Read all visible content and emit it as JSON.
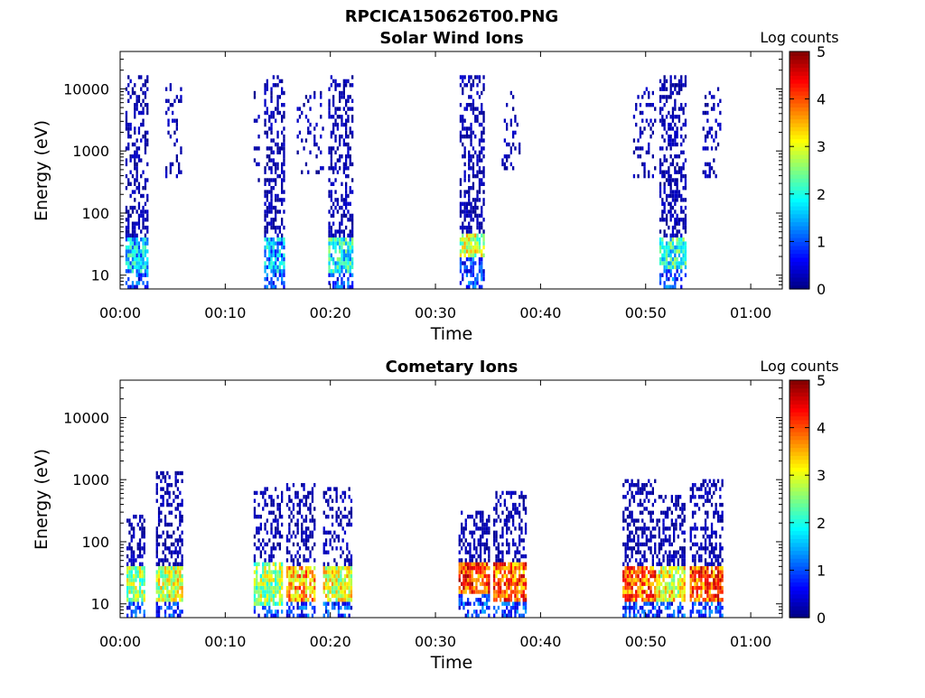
{
  "figure_title": "RPCICA150626T00.PNG",
  "chart_data": [
    {
      "type": "heatmap",
      "title": "Solar Wind Ions",
      "xlabel": "Time",
      "ylabel": "Energy (eV)",
      "x_tick_labels": [
        "00:00",
        "00:10",
        "00:20",
        "00:30",
        "00:40",
        "00:50",
        "01:00"
      ],
      "x_tick_minutes": [
        0,
        10,
        20,
        30,
        40,
        50,
        60
      ],
      "xlim_minutes": [
        0,
        63
      ],
      "y_tick_labels": [
        "10",
        "100",
        "1000",
        "10000"
      ],
      "y_tick_values": [
        10,
        100,
        1000,
        10000
      ],
      "ylim": [
        6,
        40000
      ],
      "y_scale": "log",
      "colorbar": {
        "title": "Log counts",
        "tick_labels": [
          "0",
          "1",
          "2",
          "3",
          "4",
          "5"
        ],
        "range": [
          0,
          5
        ],
        "colormap": "jet"
      },
      "bursts": [
        {
          "t_start": 0.5,
          "t_end": 2.6,
          "e_max": 15000,
          "core_e_min": 12,
          "core_e_max": 40,
          "core_level": 1.6,
          "density": 0.55
        },
        {
          "t_start": 4.3,
          "t_end": 5.9,
          "e_min": 400,
          "e_max": 12000,
          "density": 0.35
        },
        {
          "t_start": 12.7,
          "t_end": 13.2,
          "e_min": 300,
          "e_max": 8000,
          "density": 0.15
        },
        {
          "t_start": 13.7,
          "t_end": 15.5,
          "e_max": 15000,
          "core_e_min": 12,
          "core_e_max": 35,
          "core_level": 1.5,
          "density": 0.55
        },
        {
          "t_start": 16.8,
          "t_end": 19.3,
          "e_min": 400,
          "e_max": 9000,
          "density": 0.2
        },
        {
          "t_start": 19.8,
          "t_end": 22.0,
          "e_max": 15000,
          "core_e_min": 12,
          "core_e_max": 40,
          "core_level": 1.9,
          "density": 0.6
        },
        {
          "t_start": 32.3,
          "t_end": 34.7,
          "e_max": 15000,
          "core_e_min": 20,
          "core_e_max": 45,
          "core_level": 2.8,
          "density": 0.6
        },
        {
          "t_start": 36.3,
          "t_end": 38.0,
          "e_min": 500,
          "e_max": 8000,
          "density": 0.3
        },
        {
          "t_start": 48.8,
          "t_end": 50.9,
          "e_min": 400,
          "e_max": 10000,
          "density": 0.3
        },
        {
          "t_start": 51.3,
          "t_end": 53.9,
          "e_max": 15000,
          "core_e_min": 14,
          "core_e_max": 40,
          "core_level": 2.0,
          "density": 0.6
        },
        {
          "t_start": 55.4,
          "t_end": 57.1,
          "e_min": 400,
          "e_max": 10000,
          "density": 0.3
        }
      ]
    },
    {
      "type": "heatmap",
      "title": "Cometary Ions",
      "xlabel": "Time",
      "ylabel": "Energy (eV)",
      "x_tick_labels": [
        "00:00",
        "00:10",
        "00:20",
        "00:30",
        "00:40",
        "00:50",
        "01:00"
      ],
      "x_tick_minutes": [
        0,
        10,
        20,
        30,
        40,
        50,
        60
      ],
      "xlim_minutes": [
        0,
        63
      ],
      "y_tick_labels": [
        "10",
        "100",
        "1000",
        "10000"
      ],
      "y_tick_values": [
        10,
        100,
        1000,
        10000
      ],
      "ylim": [
        6,
        40000
      ],
      "y_scale": "log",
      "colorbar": {
        "title": "Log counts",
        "tick_labels": [
          "0",
          "1",
          "2",
          "3",
          "4",
          "5"
        ],
        "range": [
          0,
          5
        ],
        "colormap": "jet"
      },
      "bursts": [
        {
          "t_start": 0.6,
          "t_end": 2.4,
          "e_max": 260,
          "core_e_min": 12,
          "core_e_max": 40,
          "core_level": 2.6,
          "density": 0.5
        },
        {
          "t_start": 3.4,
          "t_end": 5.9,
          "e_max": 1200,
          "core_e_min": 12,
          "core_e_max": 40,
          "core_level": 2.9,
          "density": 0.5
        },
        {
          "t_start": 12.7,
          "t_end": 15.4,
          "e_max": 700,
          "core_e_min": 10,
          "core_e_max": 45,
          "core_level": 2.6,
          "density": 0.5
        },
        {
          "t_start": 15.8,
          "t_end": 18.5,
          "e_max": 800,
          "core_e_min": 12,
          "core_e_max": 40,
          "core_level": 3.5,
          "density": 0.5
        },
        {
          "t_start": 19.3,
          "t_end": 21.9,
          "e_max": 700,
          "core_e_min": 12,
          "core_e_max": 40,
          "core_level": 3.0,
          "density": 0.5
        },
        {
          "t_start": 32.2,
          "t_end": 35.2,
          "e_max": 300,
          "core_e_min": 15,
          "core_e_max": 45,
          "core_level": 4.1,
          "density": 0.55
        },
        {
          "t_start": 35.5,
          "t_end": 38.6,
          "e_max": 650,
          "core_e_min": 12,
          "core_e_max": 45,
          "core_level": 3.9,
          "density": 0.55
        },
        {
          "t_start": 47.8,
          "t_end": 50.9,
          "e_max": 1000,
          "core_e_min": 12,
          "core_e_max": 40,
          "core_level": 3.9,
          "density": 0.55
        },
        {
          "t_start": 51.0,
          "t_end": 53.8,
          "e_max": 500,
          "core_e_min": 12,
          "core_e_max": 40,
          "core_level": 3.1,
          "density": 0.55
        },
        {
          "t_start": 54.2,
          "t_end": 57.3,
          "e_max": 1000,
          "core_e_min": 12,
          "core_e_max": 40,
          "core_level": 4.0,
          "density": 0.55
        }
      ]
    }
  ]
}
